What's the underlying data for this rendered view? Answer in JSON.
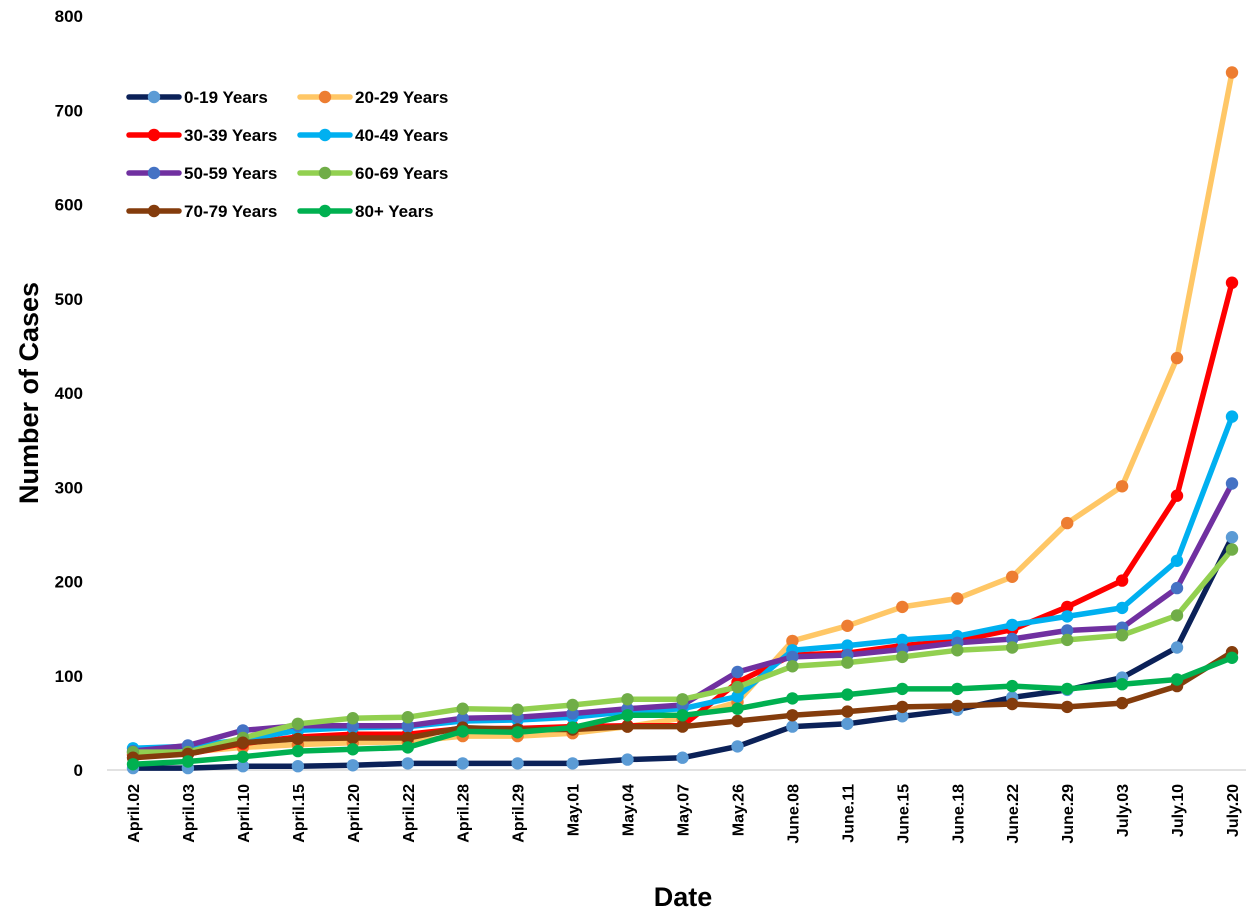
{
  "chart_data": {
    "type": "line",
    "xlabel": "Date",
    "ylabel": "Number of Cases",
    "ylim": [
      0,
      800
    ],
    "yticks": [
      "0",
      "100",
      "200",
      "300",
      "400",
      "500",
      "600",
      "700",
      "800"
    ],
    "grid": false,
    "legend_position": "top-left",
    "categories": [
      "April.02",
      "April.03",
      "April.10",
      "April.15",
      "April.20",
      "April.22",
      "April.28",
      "April.29",
      "May.01",
      "May.04",
      "May.07",
      "May.26",
      "June.08",
      "June.11",
      "June.15",
      "June.18",
      "June.22",
      "June.29",
      "July.03",
      "July.10",
      "July.20"
    ],
    "series": [
      {
        "name": "0-19 Years",
        "line_color": "#0b2158",
        "marker_color": "#5b9bd5",
        "values": [
          2,
          2,
          4,
          4,
          5,
          7,
          7,
          7,
          7,
          11,
          13,
          25,
          46,
          49,
          57,
          64,
          77,
          85,
          98,
          130,
          247
        ]
      },
      {
        "name": "20-29 Years",
        "line_color": "#ffc766",
        "marker_color": "#ed7d31",
        "values": [
          18,
          19,
          24,
          27,
          29,
          30,
          36,
          36,
          39,
          46,
          55,
          72,
          137,
          153,
          173,
          182,
          205,
          262,
          301,
          437,
          740
        ]
      },
      {
        "name": "30-39 Years",
        "line_color": "#ff0000",
        "marker_color": "#ff0000",
        "values": [
          16,
          17,
          28,
          35,
          38,
          38,
          44,
          44,
          46,
          47,
          47,
          93,
          122,
          124,
          132,
          137,
          149,
          173,
          201,
          291,
          517
        ]
      },
      {
        "name": "40-49 Years",
        "line_color": "#00b0f0",
        "marker_color": "#00b0f0",
        "values": [
          23,
          25,
          32,
          42,
          45,
          46,
          52,
          53,
          56,
          62,
          65,
          78,
          127,
          132,
          138,
          142,
          154,
          163,
          172,
          222,
          375
        ]
      },
      {
        "name": "50-59 Years",
        "line_color": "#7030a0",
        "marker_color": "#4472c4",
        "values": [
          20,
          26,
          42,
          47,
          47,
          47,
          55,
          56,
          60,
          65,
          69,
          104,
          120,
          122,
          128,
          135,
          139,
          148,
          151,
          193,
          304
        ]
      },
      {
        "name": "60-69 Years",
        "line_color": "#92d050",
        "marker_color": "#70ad47",
        "values": [
          19,
          19,
          34,
          49,
          55,
          56,
          65,
          64,
          69,
          75,
          75,
          88,
          110,
          114,
          120,
          127,
          130,
          138,
          143,
          164,
          234
        ]
      },
      {
        "name": "70-79 Years",
        "line_color": "#843c0c",
        "marker_color": "#843c0c",
        "values": [
          13,
          17,
          29,
          33,
          34,
          34,
          45,
          43,
          43,
          46,
          46,
          52,
          58,
          62,
          67,
          68,
          70,
          67,
          71,
          89,
          125
        ]
      },
      {
        "name": "80+ Years",
        "line_color": "#00b050",
        "marker_color": "#00b050",
        "values": [
          6,
          9,
          14,
          20,
          22,
          24,
          41,
          40,
          45,
          58,
          58,
          65,
          76,
          80,
          86,
          86,
          89,
          86,
          91,
          96,
          119
        ]
      }
    ]
  }
}
